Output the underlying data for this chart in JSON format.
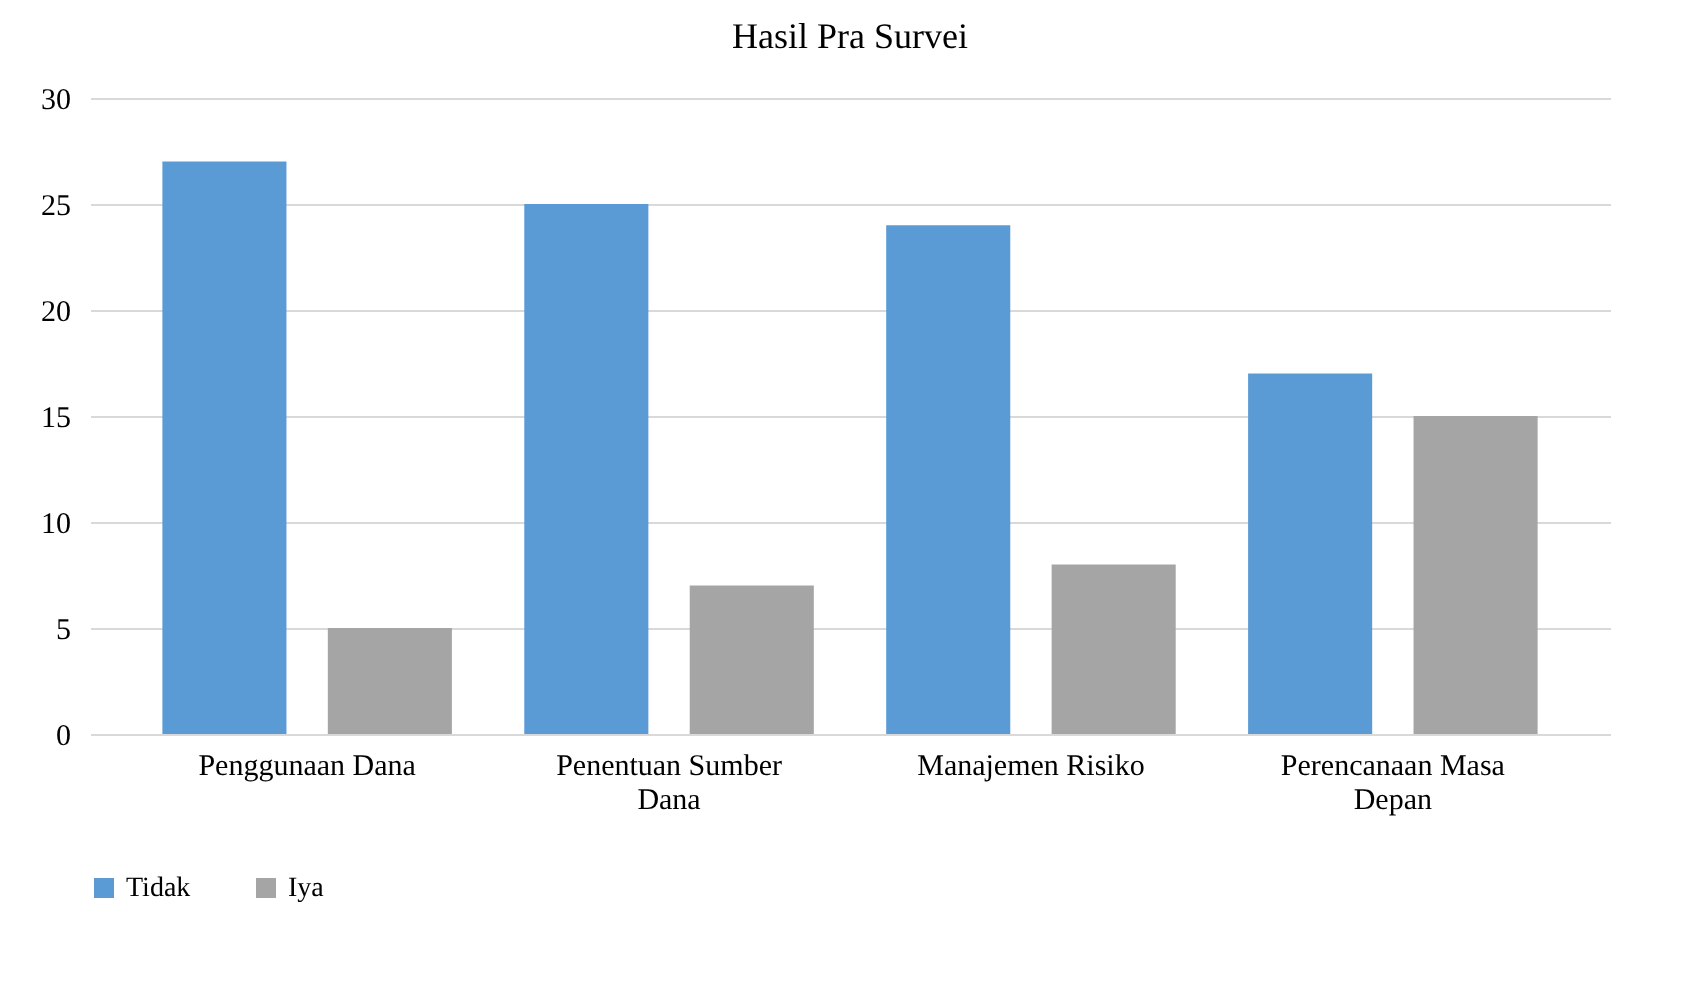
{
  "chart_data": {
    "type": "bar",
    "title": "Hasil Pra Survei",
    "categories": [
      "Penggunaan Dana",
      "Penentuan Sumber Dana",
      "Manajemen Risiko",
      "Perencanaan Masa Depan"
    ],
    "series": [
      {
        "name": "Tidak",
        "color": "#5b9bd5",
        "values": [
          27,
          25,
          24,
          17
        ]
      },
      {
        "name": "Iya",
        "color": "#a5a5a5",
        "values": [
          5,
          7,
          8,
          15
        ]
      }
    ],
    "ylim": [
      0,
      30
    ],
    "yticks": [
      0,
      5,
      10,
      15,
      20,
      25,
      30
    ],
    "grid": "y",
    "legend": "bottom"
  }
}
